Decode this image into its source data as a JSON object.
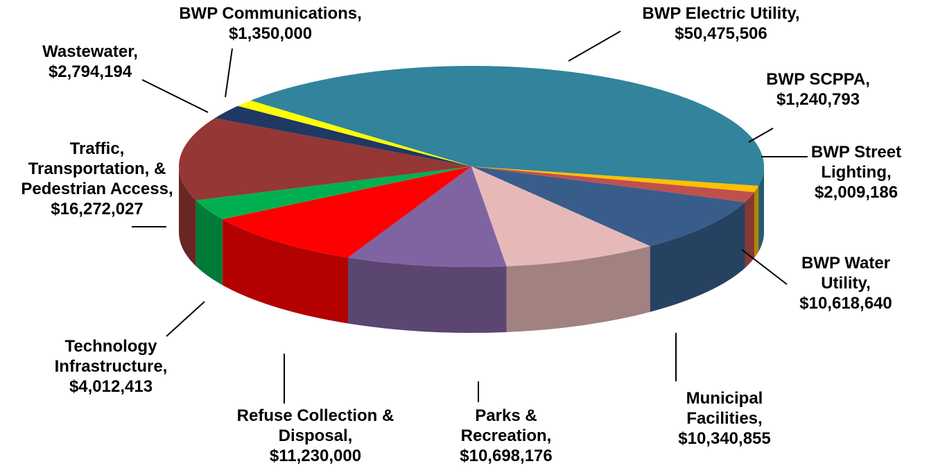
{
  "chart_data": {
    "type": "pie",
    "categories": [
      "BWP Electric Utility,",
      "BWP SCPPA,",
      "BWP Street Lighting,",
      "BWP Water Utility,",
      "Municipal Facilities,",
      "Parks & Recreation,",
      "Refuse Collection & Disposal,",
      "Technology Infrastructure,",
      "Traffic, Transportation, & Pedestrian Access,",
      "Wastewater,",
      "BWP Communications,"
    ],
    "values": [
      50475506,
      1240793,
      2009186,
      10618640,
      10340855,
      10698176,
      11230000,
      4012413,
      16272027,
      2794194,
      1350000
    ],
    "value_labels": [
      "$50,475,506",
      "$1,240,793",
      "$2,009,186",
      "$10,618,640",
      "$10,340,855",
      "$10,698,176",
      "$11,230,000",
      "$4,012,413",
      "$16,272,027",
      "$2,794,194",
      "$1,350,000"
    ],
    "colors": [
      "#31849b",
      "#ffc000",
      "#c0504d",
      "#385d8a",
      "#e6b9b8",
      "#8064a2",
      "#ff0000",
      "#00b050",
      "#953735",
      "#1f3864",
      "#ffff00"
    ]
  }
}
